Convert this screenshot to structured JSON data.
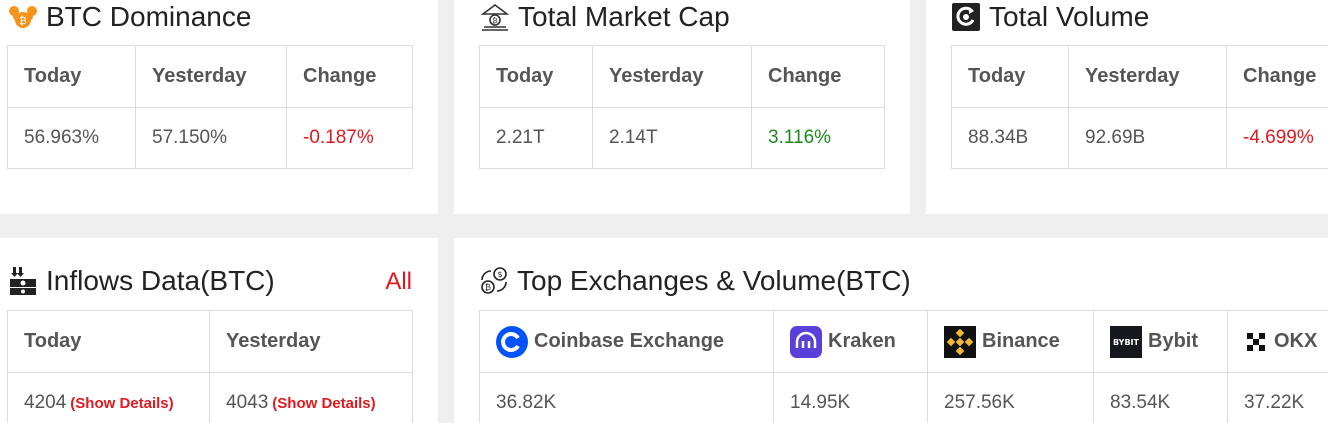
{
  "btc_dominance": {
    "title": "BTC Dominance",
    "headers": [
      "Today",
      "Yesterday",
      "Change"
    ],
    "values": [
      "56.963%",
      "57.150%",
      "-0.187%"
    ]
  },
  "market_cap": {
    "title": "Total Market Cap",
    "headers": [
      "Today",
      "Yesterday",
      "Change"
    ],
    "values": [
      "2.21T",
      "2.14T",
      "3.116%"
    ]
  },
  "total_volume": {
    "title": "Total Volume",
    "headers": [
      "Today",
      "Yesterday",
      "Change"
    ],
    "values": [
      "88.34B",
      "92.69B",
      "-4.699%"
    ]
  },
  "inflows": {
    "title": "Inflows Data(BTC)",
    "all_link": "All",
    "headers": [
      "Today",
      "Yesterday"
    ],
    "values": [
      "4204",
      "4043"
    ],
    "details_label": "(Show Details)"
  },
  "exchanges": {
    "title": "Top Exchanges & Volume(BTC)",
    "items": [
      {
        "name": "Coinbase Exchange",
        "volume": "36.82K"
      },
      {
        "name": "Kraken",
        "volume": "14.95K"
      },
      {
        "name": "Binance",
        "volume": "257.56K"
      },
      {
        "name": "Bybit",
        "volume": "83.54K"
      },
      {
        "name": "OKX",
        "volume": "37.22K"
      }
    ]
  },
  "colors": {
    "negative": "#e0191f",
    "positive": "#1e8a1e",
    "coinbase": "#0052ff",
    "kraken": "#5741d9",
    "binance": "#f3ba2f"
  }
}
